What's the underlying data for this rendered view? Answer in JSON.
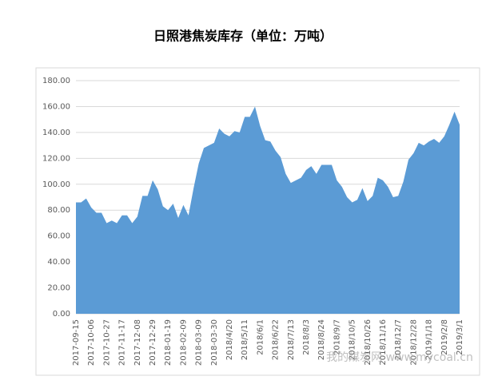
{
  "chart_data": {
    "type": "area",
    "title": "日照港焦炭库存（单位：万吨）",
    "watermark": "我的煤炭网 www.mycoal.cn",
    "color": "#5b9bd5",
    "grid": true,
    "categories": [
      "2017-09-15",
      null,
      null,
      "2017-10-06",
      null,
      null,
      "2017-10-27",
      null,
      null,
      "2017-11-17",
      null,
      null,
      "2017-12-08",
      null,
      null,
      "2017-12-29",
      null,
      null,
      "2018-01-19",
      null,
      null,
      "2018-02-09",
      null,
      null,
      "2018-03-09",
      null,
      null,
      "2018-03-30",
      null,
      null,
      "2018/4/20",
      null,
      null,
      "2018/5/11",
      null,
      null,
      "2018/6/1",
      null,
      null,
      "2018/6/22",
      null,
      null,
      "2018/7/13",
      null,
      null,
      "2018/8/3",
      null,
      null,
      "2018/8/24",
      null,
      null,
      "2018/9/7",
      null,
      null,
      "2018/10/5",
      null,
      null,
      "2018/10/26",
      null,
      null,
      "2018/11/16",
      null,
      null,
      "2018/12/7",
      null,
      null,
      "2018/12/28",
      null,
      null,
      "2019/1/18",
      null,
      null,
      "2019/2/8",
      null,
      null,
      "2019/3/1"
    ],
    "values": [
      86,
      86,
      89,
      82,
      78,
      78,
      70,
      72,
      70,
      76,
      76,
      70,
      75,
      91,
      91,
      103,
      96,
      83,
      80,
      85,
      74,
      84,
      76,
      97,
      116,
      128,
      130,
      132,
      143,
      139,
      137,
      141,
      140,
      152,
      152,
      160,
      145,
      134,
      133,
      126,
      121,
      108,
      101,
      103,
      105,
      111,
      114,
      108,
      115,
      115,
      115,
      103,
      98,
      90,
      86,
      88,
      97,
      87,
      91,
      105,
      103,
      98,
      90,
      91,
      102,
      119,
      124,
      132,
      130,
      133,
      135,
      132,
      137,
      146,
      156,
      146
    ],
    "ylim": [
      0,
      180
    ],
    "yticks": [
      {
        "value": 0,
        "label": "0.00"
      },
      {
        "value": 20,
        "label": "20.00"
      },
      {
        "value": 40,
        "label": "40.00"
      },
      {
        "value": 60,
        "label": "60.00"
      },
      {
        "value": 80,
        "label": "80.00"
      },
      {
        "value": 100,
        "label": "100.00"
      },
      {
        "value": 120,
        "label": "120.00"
      },
      {
        "value": 140,
        "label": "140.00"
      },
      {
        "value": 160,
        "label": "160.00"
      },
      {
        "value": 180,
        "label": "180.00"
      }
    ]
  }
}
